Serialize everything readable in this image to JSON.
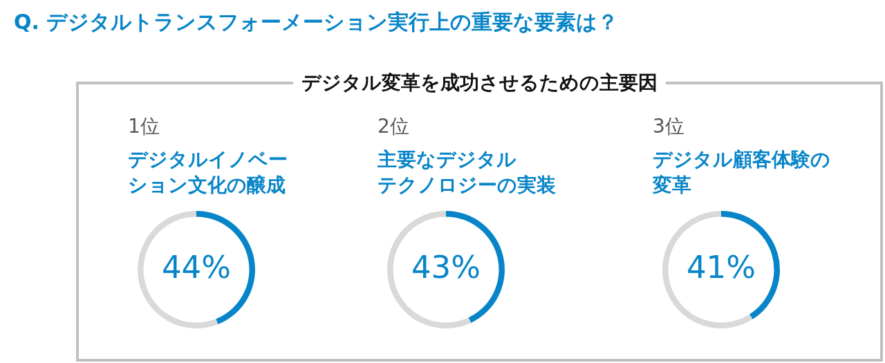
{
  "chart_data": [
    {
      "type": "other",
      "title": "Q. デジタルトランスフォーメーション実行上の重要な要素は？",
      "subtitle": "デジタル変革を成功させるための主要因"
    },
    {
      "type": "donut",
      "subtitle": "1位",
      "title": "デジタルイノベーション文化の醸成",
      "categories": [
        null,
        null
      ],
      "values": [
        44,
        56
      ],
      "colors": [
        "#0785c8",
        "#d9d9d9"
      ],
      "value_labels": [
        "44%",
        null
      ]
    },
    {
      "type": "donut",
      "subtitle": "2位",
      "title": "主要なデジタルテクノロジーの実装",
      "categories": [
        null,
        null
      ],
      "values": [
        43,
        57
      ],
      "colors": [
        "#0785c8",
        "#d9d9d9"
      ],
      "value_labels": [
        "43%",
        null
      ]
    },
    {
      "type": "donut",
      "subtitle": "3位",
      "title": "デジタル顧客体験の変革",
      "categories": [
        null,
        null
      ],
      "values": [
        41,
        59
      ],
      "colors": [
        "#0785c8",
        "#d9d9d9"
      ],
      "value_labels": [
        "41%",
        null
      ]
    }
  ]
}
